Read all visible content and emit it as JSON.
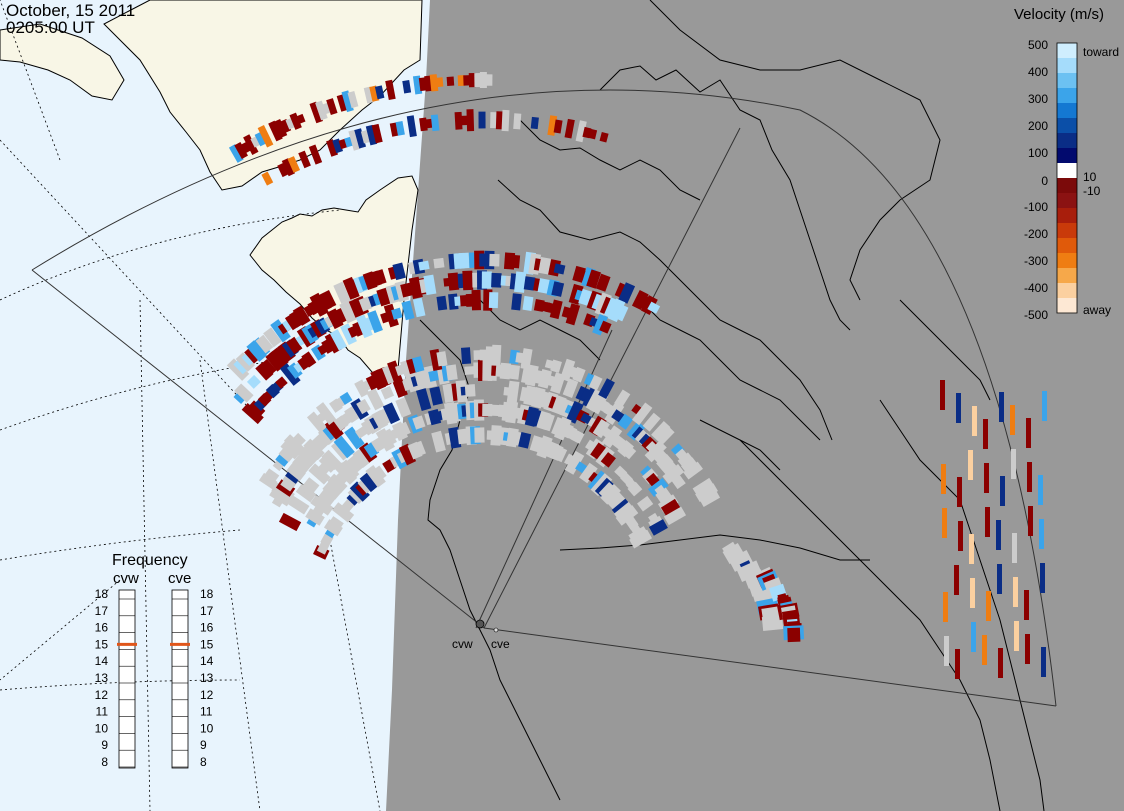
{
  "header": {
    "date": "October, 15 2011",
    "time": "0205:00 UT"
  },
  "velocity_legend": {
    "title": "Velocity (m/s)",
    "ticks": [
      "500",
      "400",
      "300",
      "200",
      "100",
      "10",
      "0",
      "-10",
      "-100",
      "-200",
      "-300",
      "-400",
      "-500"
    ],
    "toward_label": "toward",
    "away_label": "away",
    "colors": [
      "#cfeefe",
      "#a5dcfb",
      "#6cc1f2",
      "#3ba4ea",
      "#1478d2",
      "#0b4fa8",
      "#0a2d86",
      "#020a6e",
      "#ffffff",
      "#7b0a0a",
      "#8b1212",
      "#a81e0c",
      "#c93a0a",
      "#e05a0a",
      "#ef7d12",
      "#f6a84a",
      "#fbd0a0",
      "#fde8d4"
    ]
  },
  "frequency_panel": {
    "title": "Frequency",
    "radars": [
      {
        "name": "cvw",
        "frequency_mhz": 15
      },
      {
        "name": "cve",
        "frequency_mhz": 15
      }
    ],
    "scale": [
      "18",
      "17",
      "16",
      "15",
      "14",
      "13",
      "12",
      "11",
      "10",
      "9",
      "8"
    ],
    "marker_color": "#e0561a"
  },
  "radar_sites": [
    {
      "name": "cvw"
    },
    {
      "name": "cve"
    }
  ],
  "map_colors": {
    "ocean_dark": "#999999",
    "ocean_light": "#e8f4fd",
    "land_light": "#f8f6e6",
    "ground_scatter": "#cccccc"
  }
}
